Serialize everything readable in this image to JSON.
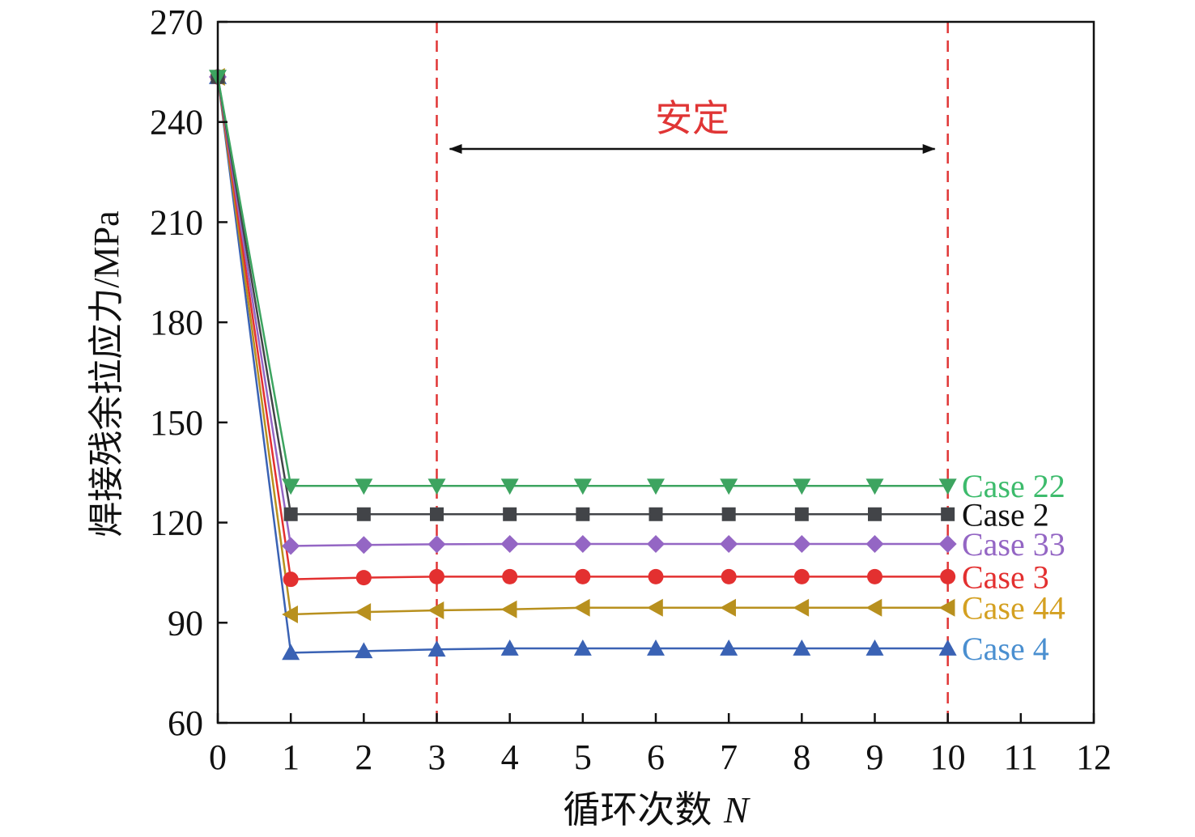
{
  "chart_data": {
    "type": "line",
    "xlabel": "循环次数 N",
    "ylabel": "焊接残余拉应力/MPa",
    "xlim": [
      0,
      12
    ],
    "ylim": [
      60,
      270
    ],
    "xticks": [
      0,
      1,
      2,
      3,
      4,
      5,
      6,
      7,
      8,
      9,
      10,
      11,
      12
    ],
    "yticks": [
      60,
      90,
      120,
      150,
      180,
      210,
      240,
      270
    ],
    "x": [
      0,
      1,
      2,
      3,
      4,
      5,
      6,
      7,
      8,
      9,
      10
    ],
    "series": [
      {
        "name": "Case 4",
        "color": "#3a62b4",
        "label_color": "#4a8fd0",
        "marker": "triangle-up",
        "values": [
          253.5,
          81,
          81.5,
          82,
          82.3,
          82.3,
          82.3,
          82.3,
          82.3,
          82.3,
          82.3
        ]
      },
      {
        "name": "Case 44",
        "color": "#b8901e",
        "label_color": "#d4a021",
        "marker": "triangle-left",
        "values": [
          253.5,
          92.5,
          93.2,
          93.7,
          94,
          94.5,
          94.5,
          94.5,
          94.5,
          94.5,
          94.5
        ]
      },
      {
        "name": "Case 3",
        "color": "#e33030",
        "label_color": "#e33030",
        "marker": "circle",
        "values": [
          253.5,
          103,
          103.5,
          103.8,
          103.8,
          103.8,
          103.8,
          103.8,
          103.8,
          103.8,
          103.8
        ]
      },
      {
        "name": "Case 33",
        "color": "#9466c4",
        "label_color": "#9466c4",
        "marker": "diamond",
        "values": [
          253.5,
          113,
          113.3,
          113.5,
          113.6,
          113.6,
          113.6,
          113.6,
          113.6,
          113.6,
          113.6
        ]
      },
      {
        "name": "Case 2",
        "color": "#424448",
        "label_color": "#111111",
        "marker": "square",
        "values": [
          253.5,
          122.5,
          122.5,
          122.5,
          122.5,
          122.5,
          122.5,
          122.5,
          122.5,
          122.5,
          122.5
        ]
      },
      {
        "name": "Case 22",
        "color": "#3da460",
        "label_color": "#3dbb6c",
        "marker": "triangle-down",
        "values": [
          253.5,
          131,
          131,
          131,
          131,
          131,
          131,
          131,
          131,
          131,
          131
        ]
      }
    ],
    "vlines": [
      3,
      10
    ],
    "vline_color": "#e03535",
    "annotation": {
      "text": "安定",
      "color": "#e03535",
      "arrow_from": 3,
      "arrow_to": 10
    },
    "grid": false,
    "legend": "right"
  }
}
